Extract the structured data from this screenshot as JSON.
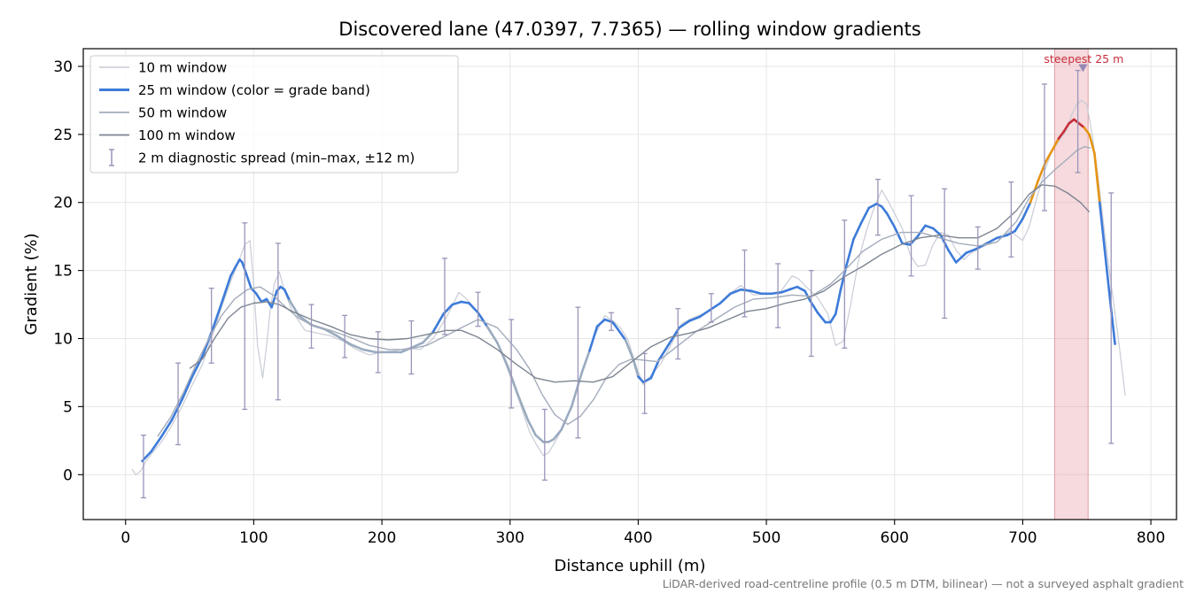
{
  "chart_data": {
    "type": "line",
    "title": "Discovered lane (47.0397, 7.7365) — rolling window gradients",
    "xlabel": "Distance uphill (m)",
    "ylabel": "Gradient (%)",
    "footnote": "LiDAR-derived road-centreline profile (0.5 m DTM, bilinear) — not a surveyed asphalt gradient",
    "xlim": [
      -33,
      820
    ],
    "ylim": [
      -3.3,
      31.3
    ],
    "xticks": [
      0,
      100,
      200,
      300,
      400,
      500,
      600,
      700,
      800
    ],
    "yticks": [
      0,
      5,
      10,
      15,
      20,
      25,
      30
    ],
    "grid": true,
    "legend_position": "top-left",
    "steepest": {
      "label": "steepest 25 m",
      "x_start": 725,
      "x_end": 751,
      "peak_x": 747,
      "peak_y": 29.9,
      "color": "#e9a3a9",
      "label_color": "#c62f3b"
    },
    "series": [
      {
        "name": "10 m window",
        "color": "#c9ccd6",
        "width": 1.2,
        "x": [
          5,
          8,
          12,
          16,
          20,
          28,
          36,
          44,
          52,
          60,
          68,
          76,
          82,
          88,
          93,
          97,
          100,
          103,
          107,
          110,
          113,
          116,
          120,
          124,
          130,
          140,
          150,
          160,
          170,
          180,
          190,
          200,
          210,
          220,
          230,
          240,
          250,
          255,
          260,
          265,
          270,
          278,
          286,
          292,
          300,
          308,
          315,
          320,
          326,
          330,
          335,
          342,
          350,
          358,
          366,
          374,
          380,
          386,
          392,
          398,
          404,
          410,
          418,
          426,
          434,
          442,
          450,
          460,
          470,
          480,
          490,
          500,
          510,
          520,
          525,
          530,
          540,
          548,
          554,
          560,
          566,
          572,
          578,
          584,
          590,
          595,
          600,
          606,
          612,
          618,
          624,
          630,
          636,
          642,
          648,
          654,
          660,
          670,
          680,
          690,
          700,
          705,
          710,
          716,
          722,
          728,
          734,
          738,
          742,
          746,
          750,
          754,
          758,
          762,
          766,
          770,
          775,
          780
        ],
        "y": [
          0.4,
          0.0,
          0.3,
          1.0,
          1.5,
          2.4,
          3.6,
          5.0,
          6.6,
          8.1,
          10.3,
          12.6,
          14.2,
          15.6,
          16.9,
          17.2,
          14.0,
          9.5,
          7.1,
          9.5,
          12.2,
          14.0,
          14.9,
          13.5,
          12.0,
          10.6,
          10.4,
          10.2,
          9.8,
          9.2,
          8.8,
          9.0,
          9.1,
          9.3,
          9.2,
          10.0,
          11.5,
          12.4,
          13.4,
          13.0,
          12.5,
          11.6,
          10.4,
          9.2,
          7.3,
          5.2,
          3.2,
          2.3,
          1.4,
          1.6,
          2.4,
          3.6,
          5.6,
          8.0,
          10.2,
          11.7,
          11.3,
          10.8,
          9.9,
          8.1,
          6.6,
          7.3,
          8.2,
          9.6,
          11.1,
          11.5,
          11.8,
          12.3,
          13.2,
          13.9,
          13.2,
          13.3,
          13.3,
          14.6,
          14.4,
          13.9,
          13.0,
          11.8,
          9.5,
          9.8,
          12.6,
          15.8,
          17.9,
          19.6,
          20.9,
          20.1,
          19.2,
          18.1,
          16.2,
          15.3,
          15.4,
          16.9,
          17.8,
          17.6,
          16.5,
          15.8,
          16.3,
          16.8,
          17.1,
          17.9,
          17.2,
          18.2,
          20.0,
          22.0,
          23.6,
          24.5,
          25.3,
          26.4,
          27.2,
          27.5,
          27.2,
          25.1,
          22.5,
          19.3,
          16.1,
          13.3,
          9.7,
          5.8
        ]
      },
      {
        "name": "25 m window (color = grade band)",
        "color": "#3d7bd9",
        "width": 2.6,
        "band_colors": [
          {
            "x_from": 0,
            "x_to": 130,
            "color": "#3d7bd9"
          },
          {
            "x_from": 130,
            "x_to": 240,
            "color": "#9aabbf"
          },
          {
            "x_from": 240,
            "x_to": 280,
            "color": "#3d7bd9"
          },
          {
            "x_from": 280,
            "x_to": 365,
            "color": "#9aabbf"
          },
          {
            "x_from": 365,
            "x_to": 390,
            "color": "#3d7bd9"
          },
          {
            "x_from": 390,
            "x_to": 400,
            "color": "#9aabbf"
          },
          {
            "x_from": 400,
            "x_to": 660,
            "color": "#3d7bd9"
          },
          {
            "x_from": 660,
            "x_to": 706,
            "color": "#3d7bd9"
          },
          {
            "x_from": 706,
            "x_to": 728,
            "color": "#e59415"
          },
          {
            "x_from": 728,
            "x_to": 748,
            "color": "#c62f3b"
          },
          {
            "x_from": 748,
            "x_to": 759,
            "color": "#e59415"
          },
          {
            "x_from": 759,
            "x_to": 775,
            "color": "#3d7bd9"
          }
        ],
        "x": [
          13,
          20,
          28,
          36,
          44,
          52,
          60,
          68,
          76,
          82,
          86,
          89,
          91,
          94,
          98,
          102,
          106,
          110,
          114,
          118,
          121,
          124,
          128,
          135,
          145,
          155,
          165,
          175,
          185,
          195,
          205,
          215,
          225,
          232,
          240,
          248,
          255,
          262,
          268,
          275,
          282,
          290,
          298,
          306,
          314,
          320,
          326,
          330,
          334,
          340,
          348,
          356,
          362,
          368,
          374,
          380,
          384,
          390,
          396,
          400,
          404,
          410,
          416,
          424,
          432,
          440,
          448,
          456,
          464,
          472,
          480,
          488,
          496,
          504,
          512,
          518,
          524,
          530,
          534,
          540,
          546,
          550,
          554,
          558,
          562,
          568,
          574,
          580,
          586,
          590,
          594,
          600,
          606,
          612,
          618,
          624,
          630,
          636,
          642,
          648,
          656,
          664,
          672,
          680,
          688,
          694,
          700,
          706,
          712,
          718,
          724,
          728,
          732,
          736,
          740,
          744,
          748,
          752,
          756,
          760,
          764,
          768,
          772
        ],
        "y": [
          1.0,
          1.7,
          2.8,
          4.0,
          5.5,
          7.2,
          8.7,
          10.7,
          12.9,
          14.6,
          15.3,
          15.8,
          15.6,
          14.8,
          13.7,
          13.3,
          12.7,
          12.9,
          12.3,
          13.5,
          13.8,
          13.6,
          12.8,
          11.7,
          11.0,
          10.7,
          10.2,
          9.6,
          9.2,
          9.0,
          9.0,
          9.0,
          9.4,
          9.7,
          10.5,
          11.8,
          12.5,
          12.7,
          12.6,
          11.9,
          10.9,
          9.7,
          8.0,
          5.9,
          4.0,
          2.9,
          2.4,
          2.4,
          2.6,
          3.3,
          5.0,
          7.5,
          9.1,
          10.9,
          11.4,
          11.2,
          10.7,
          9.9,
          8.5,
          7.2,
          6.8,
          7.1,
          8.4,
          9.6,
          10.8,
          11.3,
          11.6,
          12.1,
          12.6,
          13.3,
          13.6,
          13.5,
          13.3,
          13.3,
          13.4,
          13.6,
          13.8,
          13.5,
          12.8,
          11.9,
          11.2,
          11.2,
          11.8,
          13.6,
          15.2,
          17.3,
          18.5,
          19.6,
          19.9,
          19.7,
          19.2,
          18.2,
          17.0,
          16.9,
          17.5,
          18.3,
          18.1,
          17.6,
          16.5,
          15.6,
          16.3,
          16.6,
          17.0,
          17.4,
          17.6,
          17.9,
          18.8,
          20.0,
          21.6,
          23.0,
          24.0,
          24.7,
          25.2,
          25.8,
          26.1,
          25.8,
          25.5,
          25.0,
          23.6,
          20.0,
          16.5,
          13.0,
          9.6
        ]
      },
      {
        "name": "50 m window",
        "color": "#a3acbb",
        "width": 1.4,
        "x": [
          25,
          35,
          45,
          55,
          65,
          75,
          85,
          95,
          105,
          115,
          125,
          135,
          145,
          160,
          175,
          190,
          205,
          220,
          235,
          250,
          262,
          275,
          290,
          305,
          315,
          325,
          335,
          345,
          355,
          365,
          375,
          385,
          395,
          405,
          415,
          430,
          445,
          460,
          475,
          490,
          505,
          520,
          535,
          550,
          562,
          575,
          590,
          605,
          620,
          635,
          650,
          665,
          680,
          695,
          705,
          715,
          725,
          735,
          742,
          748,
          753
        ],
        "y": [
          2.8,
          4.2,
          6.0,
          8.1,
          10.0,
          11.7,
          12.9,
          13.6,
          13.8,
          13.2,
          12.3,
          11.5,
          11.0,
          10.6,
          10.1,
          9.5,
          9.2,
          9.2,
          9.5,
          10.2,
          10.8,
          11.4,
          10.8,
          9.2,
          7.8,
          5.9,
          4.4,
          3.7,
          4.3,
          5.5,
          7.1,
          8.1,
          8.5,
          8.4,
          8.3,
          9.4,
          10.5,
          11.4,
          12.3,
          12.9,
          13.0,
          13.2,
          13.1,
          14.0,
          15.1,
          16.4,
          17.3,
          17.8,
          17.8,
          17.4,
          17.0,
          16.8,
          17.1,
          18.6,
          20.3,
          21.5,
          22.4,
          23.2,
          23.8,
          24.1,
          24.0
        ]
      },
      {
        "name": "100 m window",
        "color": "#7d8591",
        "width": 1.4,
        "x": [
          50,
          60,
          70,
          80,
          90,
          100,
          110,
          120,
          130,
          145,
          160,
          175,
          190,
          205,
          220,
          235,
          250,
          262,
          275,
          290,
          305,
          320,
          335,
          350,
          365,
          380,
          395,
          410,
          425,
          440,
          455,
          470,
          485,
          500,
          515,
          530,
          545,
          560,
          575,
          590,
          605,
          620,
          635,
          650,
          665,
          680,
          695,
          705,
          715,
          725,
          735,
          745,
          752
        ],
        "y": [
          7.8,
          8.5,
          10.1,
          11.5,
          12.3,
          12.6,
          12.7,
          12.5,
          12.0,
          11.4,
          10.9,
          10.3,
          10.0,
          9.9,
          10.0,
          10.3,
          10.6,
          10.6,
          10.1,
          9.2,
          8.1,
          7.1,
          6.8,
          6.9,
          6.8,
          7.2,
          8.3,
          9.4,
          10.1,
          10.4,
          10.8,
          11.4,
          12.0,
          12.2,
          12.6,
          12.9,
          13.5,
          14.5,
          15.3,
          16.2,
          16.9,
          17.4,
          17.6,
          17.4,
          17.4,
          18.1,
          19.4,
          20.6,
          21.3,
          21.2,
          20.7,
          20.0,
          19.3
        ]
      }
    ],
    "diagnostic_spread": {
      "name": "2 m diagnostic spread (min–max, ±12 m)",
      "color": "#9b94b9",
      "points": [
        {
          "x": 14,
          "min": -1.7,
          "max": 2.9
        },
        {
          "x": 41,
          "min": 2.2,
          "max": 8.2
        },
        {
          "x": 67,
          "min": 8.2,
          "max": 13.7
        },
        {
          "x": 93,
          "min": 4.8,
          "max": 18.5
        },
        {
          "x": 119,
          "min": 5.5,
          "max": 17.0
        },
        {
          "x": 145,
          "min": 9.3,
          "max": 12.5
        },
        {
          "x": 171,
          "min": 8.6,
          "max": 11.7
        },
        {
          "x": 197,
          "min": 7.5,
          "max": 10.5
        },
        {
          "x": 223,
          "min": 7.4,
          "max": 11.3
        },
        {
          "x": 249,
          "min": 10.3,
          "max": 15.9
        },
        {
          "x": 275,
          "min": 10.9,
          "max": 13.4
        },
        {
          "x": 301,
          "min": 4.9,
          "max": 11.4
        },
        {
          "x": 327,
          "min": -0.4,
          "max": 4.8
        },
        {
          "x": 353,
          "min": 2.7,
          "max": 12.3
        },
        {
          "x": 379,
          "min": 10.6,
          "max": 11.9
        },
        {
          "x": 405,
          "min": 4.5,
          "max": 8.9
        },
        {
          "x": 431,
          "min": 8.5,
          "max": 12.2
        },
        {
          "x": 457,
          "min": 11.2,
          "max": 13.3
        },
        {
          "x": 483,
          "min": 11.6,
          "max": 16.5
        },
        {
          "x": 509,
          "min": 10.8,
          "max": 15.5
        },
        {
          "x": 535,
          "min": 8.7,
          "max": 15.0
        },
        {
          "x": 561,
          "min": 9.3,
          "max": 18.7
        },
        {
          "x": 587,
          "min": 17.6,
          "max": 21.7
        },
        {
          "x": 613,
          "min": 14.6,
          "max": 20.5
        },
        {
          "x": 639,
          "min": 11.5,
          "max": 21.0
        },
        {
          "x": 665,
          "min": 15.1,
          "max": 18.2
        },
        {
          "x": 691,
          "min": 16.0,
          "max": 21.5
        },
        {
          "x": 717,
          "min": 19.4,
          "max": 28.7
        },
        {
          "x": 743,
          "min": 22.2,
          "max": 29.7
        },
        {
          "x": 769,
          "min": 2.3,
          "max": 20.7
        }
      ]
    }
  }
}
